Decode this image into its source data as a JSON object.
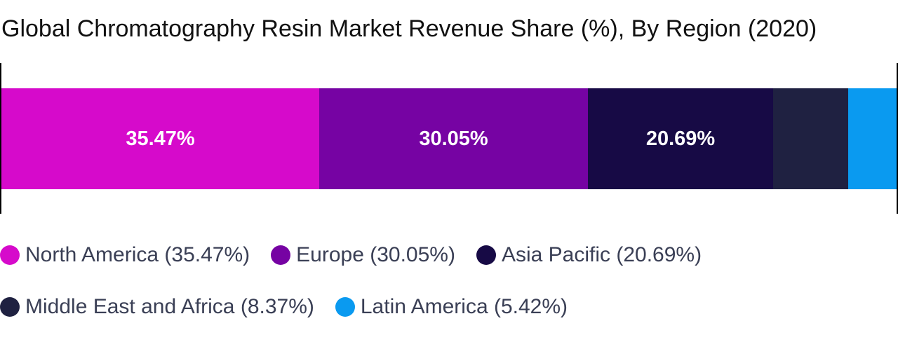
{
  "chart_data": {
    "type": "bar",
    "orientation": "horizontal-stacked-100",
    "title": "Global Chromatography Resin Market Revenue Share (%), By Region (2020)",
    "xlabel": "",
    "ylabel": "",
    "unit": "%",
    "series": [
      {
        "name": "North America",
        "value": 35.47,
        "label": "35.47%",
        "legend": "North America (35.47%)",
        "color": "#d60acb"
      },
      {
        "name": "Europe",
        "value": 30.05,
        "label": "30.05%",
        "legend": "Europe (30.05%)",
        "color": "#7603a3"
      },
      {
        "name": "Asia Pacific",
        "value": 20.69,
        "label": "20.69%",
        "legend": "Asia Pacific (20.69%)",
        "color": "#170a45"
      },
      {
        "name": "Middle East and Africa",
        "value": 8.37,
        "label": "",
        "legend": "Middle East and Africa (8.37%)",
        "color": "#1f2141"
      },
      {
        "name": "Latin America",
        "value": 5.42,
        "label": "",
        "legend": "Latin America (5.42%)",
        "color": "#0a9af0"
      }
    ],
    "grid": false,
    "legend_position": "bottom"
  }
}
